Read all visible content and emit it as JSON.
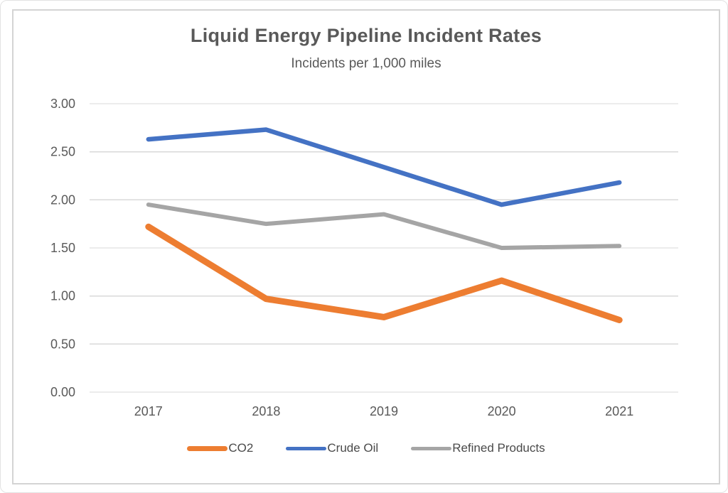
{
  "chart_data": {
    "type": "line",
    "title": "Liquid Energy Pipeline Incident Rates",
    "subtitle": "Incidents per 1,000 miles",
    "categories": [
      "2017",
      "2018",
      "2019",
      "2020",
      "2021"
    ],
    "series": [
      {
        "name": "CO2",
        "color": "#ED7D31",
        "stroke_width": 9,
        "values": [
          1.72,
          0.97,
          0.78,
          1.16,
          0.75
        ]
      },
      {
        "name": "Crude Oil",
        "color": "#4472C4",
        "stroke_width": 6.5,
        "values": [
          2.63,
          2.73,
          2.34,
          1.95,
          2.18
        ]
      },
      {
        "name": "Refined Products",
        "color": "#A5A5A5",
        "stroke_width": 6,
        "values": [
          1.95,
          1.75,
          1.85,
          1.5,
          1.52
        ]
      }
    ],
    "ylim": [
      0,
      3
    ],
    "yticks": [
      {
        "value": 0.0,
        "label": "0.00"
      },
      {
        "value": 0.5,
        "label": "0.50"
      },
      {
        "value": 1.0,
        "label": "1.00"
      },
      {
        "value": 1.5,
        "label": "1.50"
      },
      {
        "value": 2.0,
        "label": "2.00"
      },
      {
        "value": 2.5,
        "label": "2.50"
      },
      {
        "value": 3.0,
        "label": "3.00"
      }
    ],
    "grid": true,
    "legend_position": "bottom",
    "colors": {
      "grid": "#D9D9D9",
      "axis_text": "#595959",
      "title_text": "#595959"
    }
  }
}
